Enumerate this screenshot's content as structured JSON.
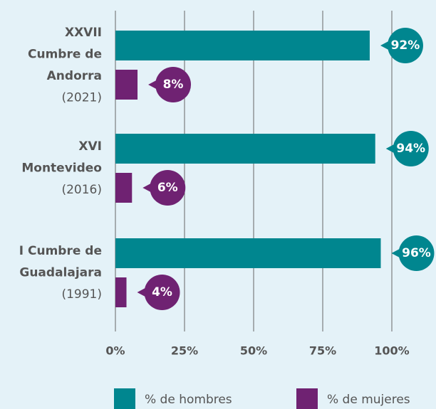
{
  "chart_data": {
    "type": "bar",
    "orientation": "horizontal",
    "categories": [
      [
        "XXVII",
        "Cumbre de",
        "Andorra",
        "(2021)"
      ],
      [
        "XVI",
        "Montevideo",
        "(2016)"
      ],
      [
        "I Cumbre de",
        "Guadalajara",
        "(1991)"
      ]
    ],
    "series": [
      {
        "name": "% de hombres",
        "color": "#00868f",
        "values": [
          92,
          94,
          96
        ],
        "value_labels": [
          "92%",
          "94%",
          "96%"
        ]
      },
      {
        "name": "% de mujeres",
        "color": "#6f2272",
        "values": [
          8,
          6,
          4
        ],
        "value_labels": [
          "8%",
          "6%",
          "4%"
        ]
      }
    ],
    "xlim": [
      0,
      100
    ],
    "xticks": [
      {
        "value": 0,
        "label": "0%"
      },
      {
        "value": 25,
        "label": "25%"
      },
      {
        "value": 50,
        "label": "50%"
      },
      {
        "value": 75,
        "label": "75%"
      },
      {
        "value": 100,
        "label": "100%"
      }
    ],
    "grid": true,
    "legend": "bottom"
  }
}
